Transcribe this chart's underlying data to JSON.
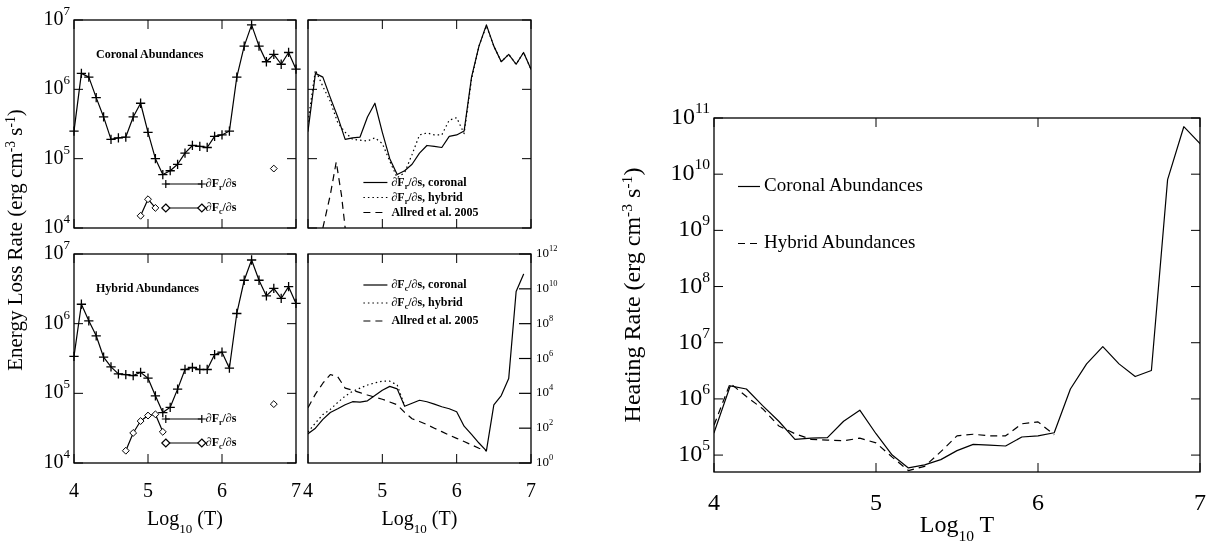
{
  "chart_data": [
    {
      "type": "line",
      "annotations": [
        "Coronal Abundances"
      ],
      "x": [
        4.0,
        4.1,
        4.2,
        4.3,
        4.4,
        4.5,
        4.6,
        4.7,
        4.8,
        4.9,
        5.0,
        5.1,
        5.2,
        5.3,
        5.4,
        5.5,
        5.6,
        5.7,
        5.8,
        5.9,
        6.0,
        6.1,
        6.2,
        6.3,
        6.4,
        6.5,
        6.6,
        6.7,
        6.8,
        6.9,
        7.0
      ],
      "xlim": [
        4,
        7
      ],
      "xticks": [
        4,
        5,
        6,
        7
      ],
      "ylim": [
        10000,
        10000000
      ],
      "yticks": [
        {
          "value": 10000,
          "label": "10$^{4}$"
        },
        {
          "value": 100000,
          "label": "10$^{5}$"
        },
        {
          "value": 1000000,
          "label": "10$^{6}$"
        },
        {
          "value": 10000000,
          "label": "10$^{7}$"
        }
      ],
      "log": "y",
      "tick_labels": "y",
      "legend": "bottom right",
      "series": [
        {
          "name": "∂F$_{r}$/∂s",
          "color": "#000000",
          "marker": "cross",
          "line_style": "solid",
          "values": [
            250000,
            1700000,
            1500000,
            760000,
            400000,
            190000,
            200000,
            205000,
            400000,
            630000,
            240000,
            100000,
            59000,
            67000,
            83000,
            120000,
            155000,
            150000,
            145000,
            210000,
            220000,
            250000,
            1500000,
            4200000,
            8500000,
            4200000,
            2500000,
            3200000,
            2300000,
            3400000,
            1950000
          ]
        },
        {
          "name": "∂F$_{c}$/∂s",
          "color": "#000000",
          "marker": "diamond",
          "line_style": "solid",
          "values": [
            null,
            null,
            null,
            null,
            null,
            null,
            null,
            null,
            null,
            15000,
            26000,
            19500,
            null,
            null,
            null,
            null,
            null,
            null,
            null,
            null,
            null,
            null,
            null,
            null,
            null,
            null,
            null,
            72000,
            null,
            null,
            null
          ]
        }
      ]
    },
    {
      "type": "line",
      "x": [
        4.0,
        4.1,
        4.2,
        4.3,
        4.4,
        4.5,
        4.6,
        4.7,
        4.8,
        4.9,
        5.0,
        5.1,
        5.2,
        5.3,
        5.4,
        5.5,
        5.6,
        5.7,
        5.8,
        5.9,
        6.0,
        6.1,
        6.2,
        6.3,
        6.4,
        6.5,
        6.6,
        6.7,
        6.8,
        6.9,
        7.0
      ],
      "xlim": [
        4,
        7
      ],
      "xticks": [
        4,
        5,
        6,
        7
      ],
      "ylim": [
        10000,
        10000000
      ],
      "yticks": [
        10000,
        100000,
        1000000,
        10000000
      ],
      "log": "y",
      "tick_labels": false,
      "legend": "bottom right",
      "series": [
        {
          "name": "∂F$_{r}$/∂s, coronal",
          "color": "#000000",
          "line_style": "solid",
          "values": [
            250000,
            1700000,
            1500000,
            760000,
            400000,
            190000,
            200000,
            205000,
            400000,
            630000,
            240000,
            100000,
            59000,
            67000,
            83000,
            120000,
            155000,
            150000,
            145000,
            210000,
            220000,
            250000,
            1500000,
            4200000,
            8500000,
            4200000,
            2500000,
            3200000,
            2300000,
            3400000,
            1950000
          ]
        },
        {
          "name": "∂F$_{r}$/∂s, hybrid",
          "color": "#000000",
          "line_style": "dotted",
          "values": [
            340000,
            1900000,
            1100000,
            670000,
            330000,
            240000,
            190000,
            185000,
            180000,
            200000,
            165000,
            92000,
            53000,
            63000,
            115000,
            220000,
            235000,
            220000,
            220000,
            360000,
            390000,
            230000,
            1400000,
            4200000,
            8200000,
            4200000,
            2500000,
            3200000,
            2300000,
            3400000,
            1950000
          ]
        },
        {
          "name": "Allred et al. 2005",
          "color": "#000000",
          "line_style": "dashed",
          "x": [
            4.2,
            4.3,
            4.38,
            4.45,
            4.5
          ],
          "values": [
            10000,
            30000,
            90000,
            30000,
            10000
          ]
        }
      ]
    },
    {
      "type": "line",
      "annotations": [
        "Hybrid Abundances"
      ],
      "ylabel": "Energy Loss Rate (erg cm$^{-3}$ s$^{-1}$)",
      "xlabel": "Log$_{10}$ (T)",
      "x": [
        4.0,
        4.1,
        4.2,
        4.3,
        4.4,
        4.5,
        4.6,
        4.7,
        4.8,
        4.9,
        5.0,
        5.1,
        5.2,
        5.3,
        5.4,
        5.5,
        5.6,
        5.7,
        5.8,
        5.9,
        6.0,
        6.1,
        6.2,
        6.3,
        6.4,
        6.5,
        6.6,
        6.7,
        6.8,
        6.9,
        7.0
      ],
      "xlim": [
        4,
        7
      ],
      "xticks": [
        4,
        5,
        6,
        7
      ],
      "ylim": [
        10000,
        10000000
      ],
      "yticks": [
        {
          "value": 10000,
          "label": "10$^{4}$"
        },
        {
          "value": 100000,
          "label": "10$^{5}$"
        },
        {
          "value": 1000000,
          "label": "10$^{6}$"
        },
        {
          "value": 10000000,
          "label": "10$^{7}$"
        }
      ],
      "log": "y",
      "legend": "bottom right",
      "series": [
        {
          "name": "∂F$_{r}$/∂s",
          "color": "#000000",
          "marker": "cross",
          "line_style": "solid",
          "values": [
            340000,
            1900000,
            1100000,
            670000,
            330000,
            240000,
            190000,
            185000,
            180000,
            200000,
            165000,
            92000,
            53000,
            63000,
            115000,
            220000,
            235000,
            220000,
            220000,
            360000,
            390000,
            230000,
            1400000,
            4200000,
            8200000,
            4200000,
            2500000,
            3200000,
            2300000,
            3400000,
            1950000
          ]
        },
        {
          "name": "∂F$_{c}$/∂s",
          "color": "#000000",
          "marker": "diamond",
          "line_style": "solid",
          "values": [
            null,
            null,
            null,
            null,
            null,
            null,
            null,
            15000,
            27000,
            40000,
            48000,
            50000,
            28000,
            null,
            null,
            null,
            null,
            null,
            null,
            null,
            null,
            null,
            null,
            null,
            null,
            null,
            null,
            70000,
            null,
            null,
            null
          ]
        }
      ]
    },
    {
      "type": "line",
      "xlabel": "Log$_{10}$ (T)",
      "x": [
        4.0,
        4.1,
        4.2,
        4.3,
        4.4,
        4.5,
        4.6,
        4.7,
        4.8,
        4.9,
        5.0,
        5.1,
        5.2,
        5.3,
        5.4,
        5.5,
        5.6,
        5.7,
        5.8,
        5.9,
        6.0,
        6.1,
        6.2,
        6.3,
        6.4,
        6.5,
        6.6,
        6.7,
        6.8,
        6.9
      ],
      "xlim": [
        4,
        7
      ],
      "xticks": [
        4,
        5,
        6,
        7
      ],
      "y2lim": [
        1,
        1000000000000
      ],
      "y2ticks": [
        {
          "value": 1,
          "label": "10$^{0}$"
        },
        {
          "value": 100,
          "label": "10$^{2}$"
        },
        {
          "value": 10000,
          "label": "10$^{4}$"
        },
        {
          "value": 1000000,
          "label": "10$^{6}$"
        },
        {
          "value": 100000000,
          "label": "10$^{8}$"
        },
        {
          "value": 10000000000,
          "label": "10$^{10}$"
        },
        {
          "value": 1000000000000,
          "label": "10$^{12}$"
        }
      ],
      "log": "y2",
      "tick_labels": "x",
      "legend": "top right",
      "series": [
        {
          "name": "∂F$_{c}$/∂s, coronal",
          "color": "#000000",
          "line_style": "solid",
          "axis": "y2",
          "values": [
            47,
            100,
            320,
            800,
            1300,
            2200,
            3300,
            3100,
            3700,
            7400,
            15000,
            25000,
            18000,
            1800,
            2700,
            4000,
            3300,
            2400,
            1700,
            1300,
            870,
            130,
            44,
            14,
            5,
            2200,
            7400,
            70000,
            7000000000,
            68000000000
          ]
        },
        {
          "name": "∂F$_{c}$/∂s, hybrid",
          "color": "#000000",
          "line_style": "dotted",
          "axis": "y2",
          "values": [
            60,
            200,
            600,
            1200,
            3000,
            7000,
            13000,
            20000,
            30000,
            40000,
            50000,
            50000,
            30000,
            2000,
            null,
            null,
            null,
            null,
            null,
            null,
            null,
            null,
            null,
            null,
            null,
            null,
            null,
            null,
            null,
            null
          ]
        },
        {
          "name": "Allred et al. 2005",
          "color": "#000000",
          "line_style": "dashed",
          "axis": "y2",
          "values": [
            1500,
            9000,
            38000,
            120000,
            90000,
            20000,
            15000,
            11000,
            8000,
            6000,
            4600,
            3200,
            2200,
            800,
            350,
            240,
            160,
            100,
            63,
            40,
            26,
            17,
            11,
            7,
            5,
            null,
            null,
            null,
            null,
            null
          ]
        }
      ]
    },
    {
      "type": "line",
      "xlabel": "Log$_{10}$ T",
      "ylabel": "Heating Rate (erg cm$^{-3}$ s$^{-1}$)",
      "x": [
        4.0,
        4.1,
        4.2,
        4.3,
        4.4,
        4.5,
        4.6,
        4.7,
        4.8,
        4.9,
        5.0,
        5.1,
        5.2,
        5.3,
        5.4,
        5.5,
        5.6,
        5.7,
        5.8,
        5.9,
        6.0,
        6.1,
        6.2,
        6.3,
        6.4,
        6.5,
        6.6,
        6.7,
        6.8,
        6.9,
        7.0
      ],
      "xlim": [
        4,
        7
      ],
      "xticks": [
        4,
        5,
        6,
        7
      ],
      "ylim": [
        50000,
        100000000000
      ],
      "yticks": [
        {
          "value": 100000,
          "label": "10$^{5}$"
        },
        {
          "value": 1000000,
          "label": "10$^{6}$"
        },
        {
          "value": 10000000,
          "label": "10$^{7}$"
        },
        {
          "value": 100000000,
          "label": "10$^{8}$"
        },
        {
          "value": 1000000000,
          "label": "10$^{9}$"
        },
        {
          "value": 10000000000,
          "label": "10$^{10}$"
        },
        {
          "value": 100000000000,
          "label": "10$^{11}$"
        }
      ],
      "log": "y",
      "legend": "top left",
      "series": [
        {
          "name": "Coronal Abundances",
          "color": "#000000",
          "line_style": "solid",
          "values": [
            250000,
            1700000,
            1500000,
            760000,
            400000,
            190000,
            200000,
            205000,
            400000,
            630000,
            240000,
            100000,
            59000,
            67000,
            83000,
            120000,
            155000,
            150000,
            145000,
            210000,
            220000,
            250000,
            1500000,
            4200000,
            8500000,
            4200000,
            2500000,
            3200000,
            8000000000,
            70000000000,
            35000000000
          ]
        },
        {
          "name": "Hybrid Abundances",
          "color": "#000000",
          "line_style": "dashed",
          "values": [
            340000,
            1900000,
            1100000,
            670000,
            330000,
            240000,
            190000,
            185000,
            180000,
            200000,
            165000,
            92000,
            53000,
            63000,
            115000,
            220000,
            235000,
            220000,
            220000,
            360000,
            390000,
            230000,
            null,
            null,
            null,
            null,
            null,
            null,
            null,
            null,
            null
          ]
        }
      ]
    }
  ]
}
